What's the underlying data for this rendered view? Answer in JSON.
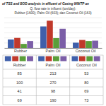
{
  "chart_data": {
    "type": "bar",
    "title": "of TSS and BOD analysis in effluent of Gasing WWTP an",
    "subtitle": [
      "Q. flow rate in influent (ton/day):",
      "Rubber  (1600); Palm  Oil (603); dan Coconut  Oil (163)"
    ],
    "categories": [
      "Rubber",
      "Palm Oil",
      "Coconut Oil"
    ],
    "series": [
      {
        "color": "#3f5faa",
        "values": [
          85,
          213,
          53
        ]
      },
      {
        "color": "#c0392b",
        "values": [
          100,
          270,
          80
        ]
      },
      {
        "color": "#5a9e3a",
        "values": [
          41,
          98,
          69
        ]
      },
      {
        "color": "#7b5ea7",
        "values": [
          69,
          190,
          73
        ]
      }
    ],
    "ylim": [
      0,
      300
    ],
    "yticks": [
      0,
      50,
      100,
      150,
      200,
      250,
      300
    ],
    "grid": true,
    "tick_labels": "x",
    "table": {
      "rows": [
        [
          85,
          213,
          53
        ],
        [
          100,
          270,
          80
        ],
        [
          41,
          98,
          69
        ],
        [
          69,
          190,
          73
        ]
      ]
    }
  }
}
